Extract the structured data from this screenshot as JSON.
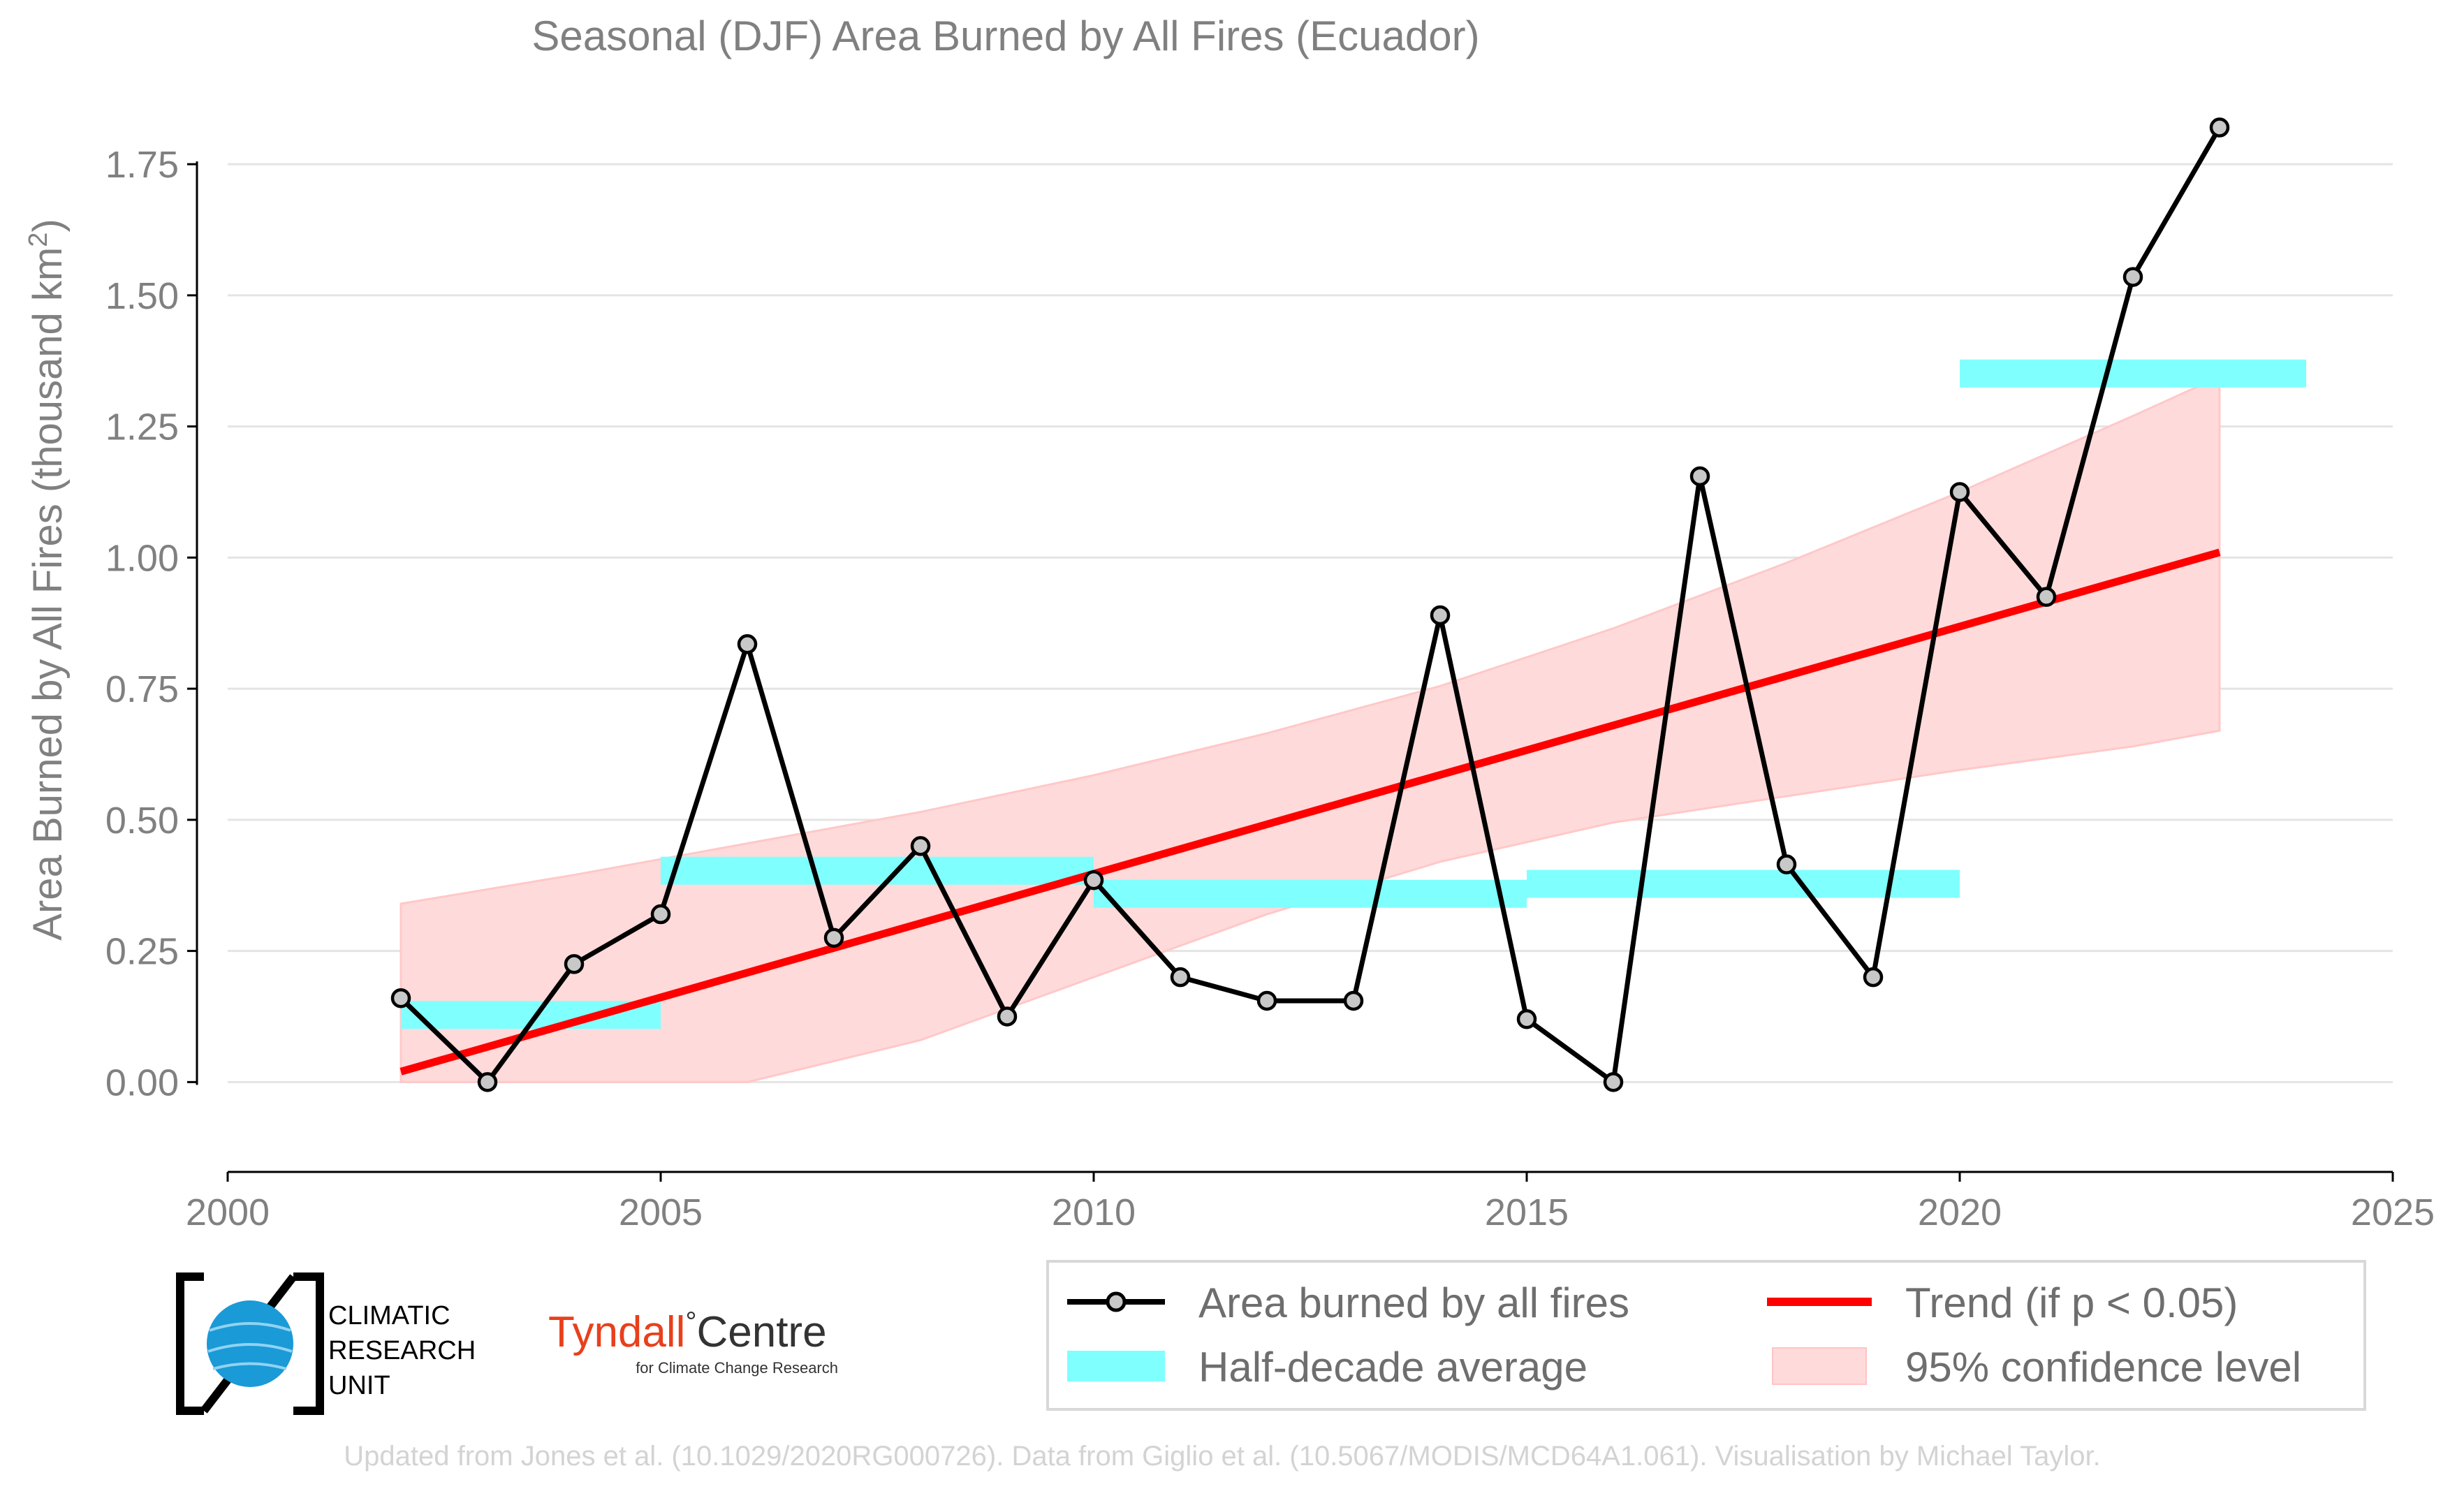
{
  "chart_data": {
    "type": "line",
    "title": "Seasonal (DJF) Area Burned by All Fires (Ecuador)",
    "ylabel_main": "Area Burned by All Fires (thousand km",
    "ylabel_sup": "2",
    "ylabel_tail": ")",
    "xlim": [
      2000,
      2025
    ],
    "ylim": [
      -0.15,
      1.85
    ],
    "xticks": [
      2000,
      2005,
      2010,
      2015,
      2020,
      2025
    ],
    "xtick_labels": [
      "2000",
      "2005",
      "2010",
      "2015",
      "2020",
      "2025"
    ],
    "yticks": [
      0,
      0.25,
      0.5,
      0.75,
      1.0,
      1.25,
      1.5,
      1.75
    ],
    "ytick_labels": [
      "0.00",
      "0.25",
      "0.50",
      "0.75",
      "1.00",
      "1.25",
      "1.50",
      "1.75"
    ],
    "grid": "horizontal",
    "series": [
      {
        "name": "Area burned by all fires",
        "color": "#000000",
        "marker_fill": "#c8c8c8",
        "x": [
          2002,
          2003,
          2004,
          2005,
          2006,
          2007,
          2008,
          2009,
          2010,
          2011,
          2012,
          2013,
          2014,
          2015,
          2016,
          2017,
          2018,
          2019,
          2020,
          2021,
          2022,
          2023
        ],
        "y": [
          0.16,
          0.0,
          0.225,
          0.32,
          0.835,
          0.275,
          0.45,
          0.125,
          0.385,
          0.2,
          0.155,
          0.155,
          0.89,
          0.12,
          0.0,
          1.155,
          0.415,
          0.2,
          1.125,
          0.925,
          1.535,
          1.82
        ]
      }
    ],
    "half_decade_average": {
      "name": "Half-decade average",
      "color": "#80ffff",
      "segments": [
        {
          "x0": 2002,
          "x1": 2005,
          "y": 0.128
        },
        {
          "x0": 2005,
          "x1": 2010,
          "y": 0.403
        },
        {
          "x0": 2010,
          "x1": 2015,
          "y": 0.359
        },
        {
          "x0": 2015,
          "x1": 2020,
          "y": 0.378
        },
        {
          "x0": 2020,
          "x1": 2024,
          "y": 1.351
        }
      ]
    },
    "trend": {
      "name": "Trend (if p < 0.05)",
      "color": "#ff0000",
      "x": [
        2002,
        2023
      ],
      "y": [
        0.02,
        1.01
      ]
    },
    "confidence": {
      "name": "95% confidence level",
      "color": "#ffdada",
      "x": [
        2002,
        2004,
        2006,
        2008,
        2010,
        2012,
        2014,
        2016,
        2018,
        2020,
        2022,
        2023
      ],
      "upper": [
        0.34,
        0.395,
        0.455,
        0.515,
        0.585,
        0.665,
        0.755,
        0.865,
        0.99,
        1.125,
        1.27,
        1.345
      ],
      "lower": [
        0.0,
        0.0,
        0.0,
        0.08,
        0.2,
        0.32,
        0.42,
        0.495,
        0.545,
        0.595,
        0.64,
        0.67
      ]
    },
    "legend": {
      "placement": "bottom-right",
      "entries": [
        "Area burned by all fires",
        "Trend (if p < 0.05)",
        "Half-decade average",
        "95% confidence level"
      ]
    }
  },
  "logos": {
    "cru_lines": [
      "CLIMATIC",
      "RESEARCH",
      "UNIT"
    ],
    "tyndall_main": "Tyndall",
    "tyndall_degree": "°",
    "tyndall_centre": "Centre",
    "tyndall_sub": "for Climate Change Research"
  },
  "credit": "Updated from Jones et al. (10.1029/2020RG000726). Data from Giglio et al. (10.5067/MODIS/MCD64A1.061). Visualisation by Michael Taylor."
}
